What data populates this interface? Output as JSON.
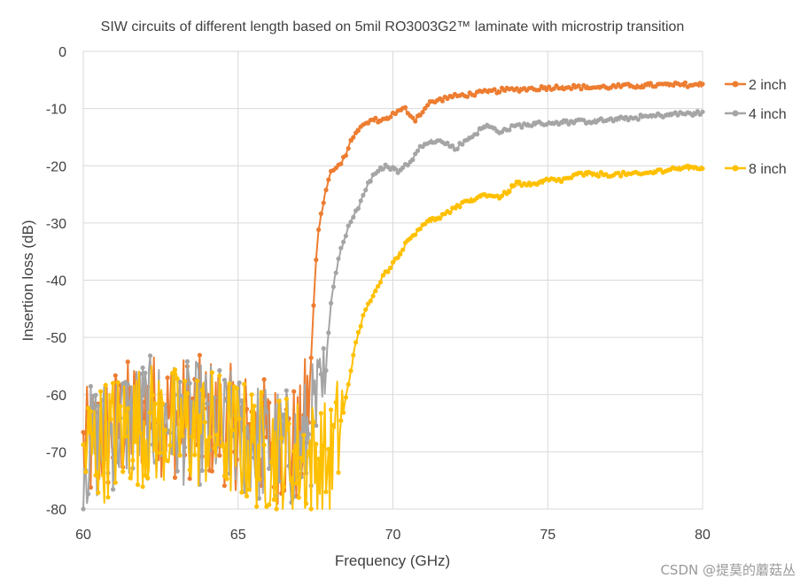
{
  "chart_data": {
    "type": "line",
    "title": "SIW circuits of different length based on 5mil RO3003G2™ laminate with microstrip transition",
    "xlabel": "Frequency (GHz)",
    "ylabel": "Insertion loss (dB)",
    "xlim": [
      60,
      80
    ],
    "ylim": [
      -80,
      0
    ],
    "x_ticks": [
      60,
      65,
      70,
      75,
      80
    ],
    "x_tick_labels": [
      "60",
      "65",
      "70",
      "75",
      "80"
    ],
    "y_ticks": [
      0,
      -10,
      -20,
      -30,
      -40,
      -50,
      -60,
      -70,
      -80
    ],
    "y_tick_labels": [
      "0",
      "-10",
      "-20",
      "-30",
      "-40",
      "-50",
      "-60",
      "-70",
      "-80"
    ],
    "grid": true,
    "legend_position": "right",
    "series": [
      {
        "name": "2 inch",
        "color": "#ED7D31",
        "noise_end_x": 67.3,
        "x": [
          60,
          61,
          62,
          63,
          64,
          65,
          66,
          67,
          67.3,
          67.4,
          67.5,
          67.6,
          67.8,
          68.0,
          68.3,
          68.8,
          69.3,
          69.7,
          70.0,
          70.4,
          70.7,
          71.2,
          71.8,
          72.5,
          73.5,
          74.5,
          75.5,
          76.5,
          77.5,
          78.5,
          80
        ],
        "y": [
          -70,
          -66,
          -63,
          -64,
          -64,
          -66,
          -68,
          -69,
          -60,
          -49,
          -38,
          -31,
          -25,
          -21,
          -20,
          -14,
          -12,
          -12,
          -11,
          -10,
          -12,
          -9,
          -8,
          -7.5,
          -6.8,
          -6.5,
          -6.2,
          -6.3,
          -6.1,
          -5.9,
          -5.8
        ]
      },
      {
        "name": "4 inch",
        "color": "#A5A5A5",
        "noise_end_x": 67.8,
        "x": [
          60,
          61,
          62,
          63,
          64,
          65,
          66,
          67,
          67.8,
          67.9,
          68.0,
          68.1,
          68.3,
          68.6,
          68.9,
          69.2,
          69.5,
          69.8,
          70.2,
          70.6,
          71.0,
          71.3,
          71.7,
          72.0,
          72.5,
          73.0,
          73.5,
          74.0,
          75.0,
          76.0,
          77.0,
          78.0,
          79.0,
          80
        ],
        "y": [
          -70,
          -66,
          -64,
          -65,
          -65,
          -67,
          -69,
          -70,
          -60,
          -50,
          -44,
          -40,
          -35,
          -30,
          -27,
          -23,
          -21,
          -20,
          -21,
          -19,
          -16,
          -15.5,
          -16,
          -17,
          -15,
          -13,
          -14,
          -13,
          -12.5,
          -12.3,
          -12,
          -11.5,
          -11,
          -10.8
        ]
      },
      {
        "name": "8 inch",
        "color": "#FFC000",
        "noise_end_x": 68.4,
        "x": [
          60,
          61,
          62,
          63,
          64,
          65,
          66,
          67,
          68.0,
          68.4,
          68.6,
          68.8,
          69.0,
          69.3,
          69.6,
          70.0,
          70.5,
          71.0,
          71.5,
          72.0,
          72.5,
          73.0,
          73.5,
          74.0,
          74.5,
          75.0,
          75.5,
          76.0,
          77.0,
          78.0,
          79.0,
          80
        ],
        "y": [
          -70,
          -67,
          -65,
          -66,
          -66,
          -68,
          -70,
          -71,
          -72,
          -63,
          -57,
          -51,
          -47,
          -43,
          -40,
          -37,
          -33,
          -30,
          -29,
          -27.5,
          -26,
          -25,
          -25.5,
          -23,
          -23.5,
          -22.5,
          -22.5,
          -21.5,
          -21.5,
          -21.5,
          -20.5,
          -20.3
        ]
      }
    ]
  },
  "watermark": "CSDN @提莫的蘑菇丛"
}
